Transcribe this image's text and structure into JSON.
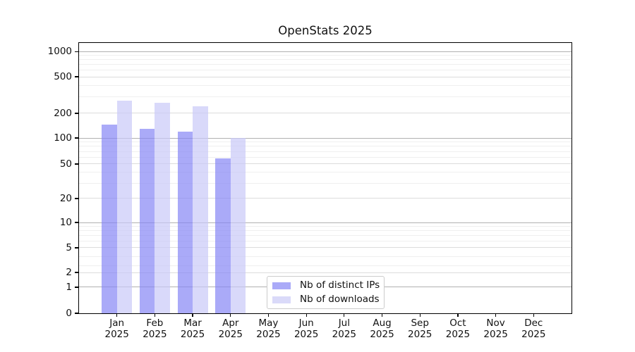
{
  "chart_data": {
    "type": "bar",
    "title": "OpenStats 2025",
    "months": [
      "Jan",
      "Feb",
      "Mar",
      "Apr",
      "May",
      "Jun",
      "Jul",
      "Aug",
      "Sep",
      "Oct",
      "Nov",
      "Dec"
    ],
    "year": "2025",
    "series": [
      {
        "name": "Nb of distinct IPs",
        "fill": "rgba(134,134,245,0.7)",
        "swatch": "#aaaaf8",
        "values": [
          145,
          130,
          120,
          58,
          null,
          null,
          null,
          null,
          null,
          null,
          null,
          null
        ]
      },
      {
        "name": "Nb of downloads",
        "fill": "rgba(201,201,248,0.7)",
        "swatch": "#dadaf9",
        "values": [
          275,
          260,
          240,
          100,
          null,
          null,
          null,
          null,
          null,
          null,
          null,
          null
        ]
      }
    ],
    "yticks": [
      0,
      1,
      2,
      5,
      10,
      20,
      50,
      100,
      200,
      500,
      1000
    ],
    "xlabel": "",
    "ylabel": "",
    "ylim": [
      0,
      1300
    ],
    "scale": {
      "type": "symlog (linear 0-1, log above 1)",
      "anchors": [
        [
          0,
          0.0
        ],
        [
          1,
          0.0964
        ],
        [
          2,
          0.151
        ],
        [
          3,
          0.1763
        ],
        [
          4,
          0.2102
        ],
        [
          5,
          0.2422
        ],
        [
          6,
          0.2674
        ],
        [
          7,
          0.2883
        ],
        [
          8,
          0.3055
        ],
        [
          9,
          0.3211
        ],
        [
          10,
          0.3359
        ],
        [
          20,
          0.4245
        ],
        [
          50,
          0.5521
        ],
        [
          100,
          0.6484
        ],
        [
          200,
          0.7396
        ],
        [
          500,
          0.875
        ],
        [
          1000,
          0.968
        ]
      ]
    },
    "grid": {
      "on": true,
      "dark_values": [
        1,
        10,
        100,
        1000
      ],
      "light_values": [
        2,
        5,
        20,
        50,
        200,
        500
      ],
      "minor_values": [
        3,
        4,
        6,
        7,
        8,
        9,
        30,
        40,
        60,
        70,
        80,
        90,
        300,
        400,
        600,
        700,
        800,
        900
      ],
      "dark_color": "#b0b0b0",
      "light_color": "#dcdcdc",
      "minor_color": "#efefef"
    },
    "legend": {
      "position": "lower center"
    },
    "colors": {
      "spine": "#000000",
      "text": "#111111",
      "background": "#ffffff"
    }
  }
}
